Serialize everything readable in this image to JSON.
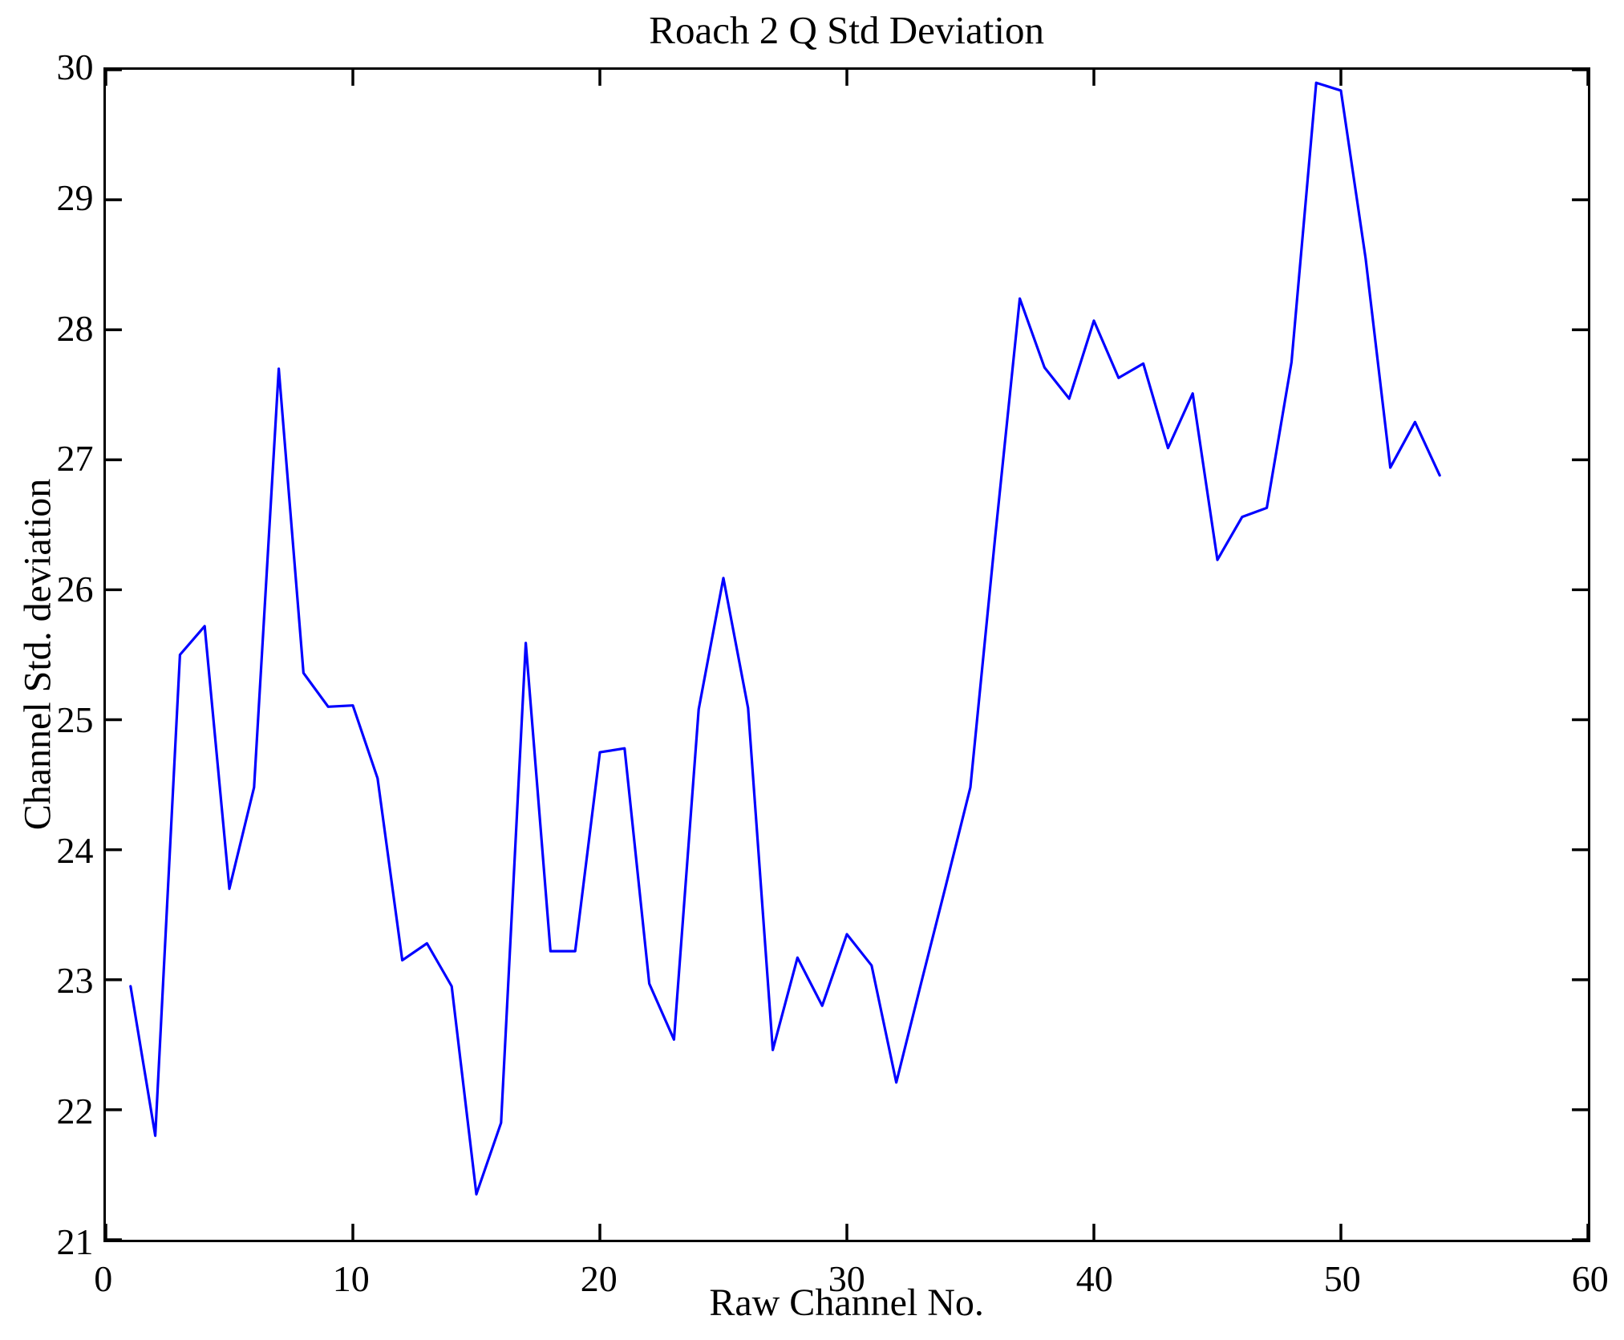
{
  "title": "Roach 2 Q Std Deviation",
  "chart_data": {
    "type": "line",
    "title": "Roach 2 Q Std Deviation",
    "xlabel": "Raw Channel No.",
    "ylabel": "Channel Std. deviation",
    "xlim": [
      0,
      60
    ],
    "ylim": [
      21,
      30
    ],
    "x_ticks": [
      0,
      10,
      20,
      30,
      40,
      50,
      60
    ],
    "y_ticks": [
      21,
      22,
      23,
      24,
      25,
      26,
      27,
      28,
      29,
      30
    ],
    "grid": false,
    "legend": null,
    "line_color": "#0000FF",
    "axis_color": "#000000",
    "background_color": "#FFFFFF",
    "x": [
      1,
      2,
      3,
      4,
      5,
      6,
      7,
      8,
      9,
      10,
      11,
      12,
      13,
      14,
      15,
      16,
      17,
      18,
      19,
      20,
      21,
      22,
      23,
      24,
      25,
      26,
      27,
      28,
      29,
      30,
      31,
      32,
      33,
      34,
      35,
      36,
      37,
      38,
      39,
      40,
      41,
      42,
      43,
      44,
      45,
      46,
      47,
      48,
      49,
      50,
      51,
      52,
      53,
      54
    ],
    "series": [
      {
        "name": "Channel Std. deviation",
        "values": [
          22.95,
          21.8,
          25.5,
          25.72,
          23.7,
          24.48,
          27.7,
          25.36,
          25.1,
          25.11,
          24.55,
          23.15,
          23.28,
          22.95,
          21.35,
          21.9,
          25.59,
          23.22,
          23.22,
          24.75,
          24.78,
          22.97,
          22.54,
          25.08,
          26.09,
          25.09,
          22.46,
          23.17,
          22.8,
          23.35,
          23.11,
          22.21,
          22.97,
          23.72,
          24.48,
          26.4,
          28.24,
          27.71,
          27.47,
          28.07,
          27.63,
          27.74,
          27.09,
          27.51,
          26.23,
          26.56,
          26.63,
          27.75,
          29.9,
          29.84,
          28.55,
          26.94,
          27.29,
          26.88
        ]
      }
    ]
  }
}
